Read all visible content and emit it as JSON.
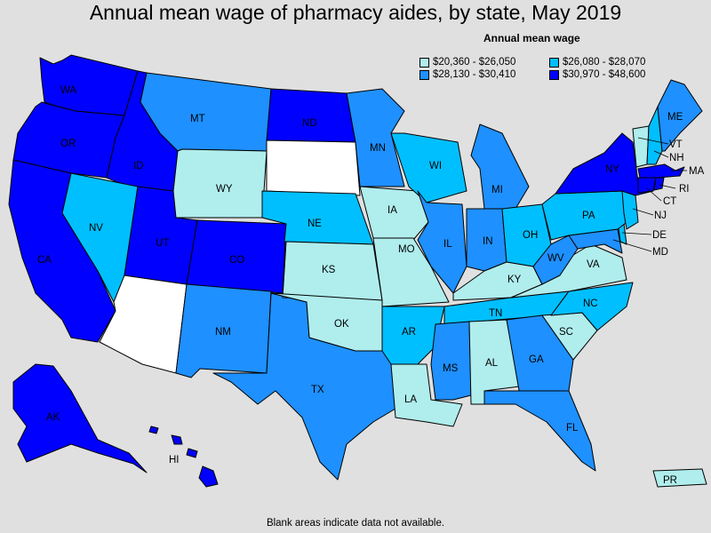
{
  "title": "Annual mean wage of pharmacy aides, by state, May 2019",
  "legend": {
    "title": "Annual mean wage",
    "items": [
      {
        "label": "$20,360 - $26,050",
        "color": "#b0eded"
      },
      {
        "label": "$26,080 - $28,070",
        "color": "#00bfff"
      },
      {
        "label": "$28,130 - $30,410",
        "color": "#1e90ff"
      },
      {
        "label": "$30,970 - $48,600",
        "color": "#0000ff"
      }
    ]
  },
  "no_data_color": "#ffffff",
  "note": "Blank areas indicate data not available.",
  "states": {
    "WA": 3,
    "OR": 3,
    "CA": 3,
    "ID": 3,
    "NV": 1,
    "AZ": null,
    "UT": 3,
    "MT": 2,
    "WY": 0,
    "CO": 3,
    "NM": 2,
    "TX": 2,
    "ND": 3,
    "SD": null,
    "NE": 1,
    "KS": 0,
    "OK": 0,
    "MN": 2,
    "IA": 0,
    "MO": 0,
    "AR": 1,
    "LA": 0,
    "WI": 1,
    "IL": 2,
    "MI": 2,
    "IN": 2,
    "OH": 1,
    "KY": 0,
    "TN": 1,
    "MS": 2,
    "AL": 0,
    "GA": 2,
    "FL": 2,
    "SC": 0,
    "NC": 1,
    "VA": 0,
    "WV": 2,
    "PA": 1,
    "NY": 3,
    "ME": 2,
    "VT": 0,
    "NH": 1,
    "MA": 3,
    "RI": 3,
    "CT": 3,
    "NJ": 1,
    "DE": 1,
    "MD": 2,
    "AK": 3,
    "HI": 3,
    "PR": 0
  },
  "labels": {
    "WA": "WA",
    "OR": "OR",
    "CA": "CA",
    "ID": "ID",
    "NV": "NV",
    "UT": "UT",
    "MT": "MT",
    "WY": "WY",
    "CO": "CO",
    "NM": "NM",
    "TX": "TX",
    "ND": "ND",
    "NE": "NE",
    "KS": "KS",
    "OK": "OK",
    "MN": "MN",
    "IA": "IA",
    "MO": "MO",
    "AR": "AR",
    "LA": "LA",
    "WI": "WI",
    "IL": "IL",
    "MI": "MI",
    "IN": "IN",
    "OH": "OH",
    "KY": "KY",
    "TN": "TN",
    "MS": "MS",
    "AL": "AL",
    "GA": "GA",
    "FL": "FL",
    "SC": "SC",
    "NC": "NC",
    "VA": "VA",
    "WV": "WV",
    "PA": "PA",
    "NY": "NY",
    "ME": "ME",
    "VT": "VT",
    "NH": "NH",
    "MA": "MA",
    "RI": "RI",
    "CT": "CT",
    "NJ": "NJ",
    "DE": "DE",
    "MD": "MD",
    "AK": "AK",
    "HI": "HI",
    "PR": "PR"
  }
}
